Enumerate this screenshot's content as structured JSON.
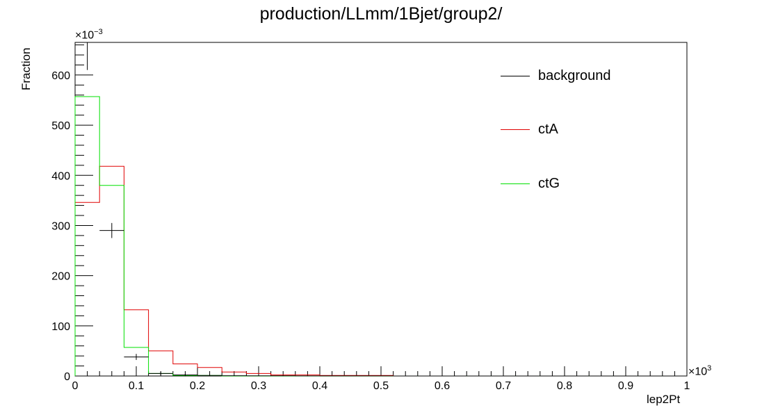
{
  "chart_data": {
    "type": "bar",
    "title": "production/LLmm/1Bjet/group2/",
    "xlabel": "lep2Pt",
    "ylabel": "Fraction",
    "x_multiplier": "×10",
    "x_exponent": "3",
    "y_multiplier": "×10",
    "y_exponent": "−3",
    "xlim": [
      0,
      1
    ],
    "ylim": [
      0,
      665
    ],
    "x_ticks": [
      "0",
      "0.1",
      "0.2",
      "0.3",
      "0.4",
      "0.5",
      "0.6",
      "0.7",
      "0.8",
      "0.9",
      "1"
    ],
    "y_ticks": [
      "0",
      "100",
      "200",
      "300",
      "400",
      "500",
      "600"
    ],
    "bin_edges": [
      0,
      0.04,
      0.08,
      0.12,
      0.16,
      0.2,
      0.24,
      0.28,
      0.32,
      0.36,
      0.4,
      0.44,
      0.48,
      0.52,
      0.56,
      0.6,
      0.64,
      0.68,
      0.72,
      0.76,
      0.8,
      0.84,
      0.88,
      0.92,
      0.96,
      1.0
    ],
    "legend_position": "top-right",
    "series": [
      {
        "name": "background",
        "color": "#000000",
        "style": "points",
        "values": [
          670,
          290,
          38,
          5,
          2,
          1,
          0.5,
          0.3,
          0.3,
          0.2,
          0.1,
          0.1,
          0.1,
          0,
          0,
          0,
          0,
          0,
          0,
          0,
          0,
          0,
          0,
          0,
          0
        ],
        "errors": [
          60,
          15,
          6,
          3,
          2,
          1,
          1,
          1,
          1,
          1,
          0,
          0,
          0,
          0,
          0,
          0,
          0,
          0,
          0,
          0,
          0,
          0,
          0,
          0,
          0
        ]
      },
      {
        "name": "ctA",
        "color": "#e00000",
        "style": "step",
        "values": [
          346,
          418,
          132,
          50,
          24,
          17,
          8,
          5,
          2,
          2,
          1,
          1,
          1,
          0,
          0,
          0,
          0,
          0,
          0,
          0,
          0,
          0,
          0,
          0,
          0
        ]
      },
      {
        "name": "ctG",
        "color": "#00e000",
        "style": "step",
        "values": [
          557,
          380,
          57,
          5,
          1,
          1,
          0,
          0,
          0,
          0,
          0,
          0,
          0,
          0,
          0,
          0,
          0,
          0,
          0,
          0,
          0,
          0,
          0,
          0,
          0
        ]
      }
    ]
  }
}
